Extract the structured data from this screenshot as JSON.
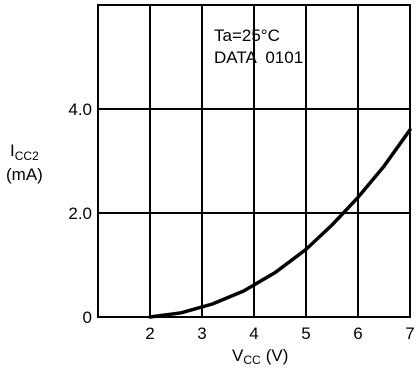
{
  "chart_data": {
    "type": "line",
    "title": "",
    "annotation": [
      "Ta=25°C",
      "DATA  0101"
    ],
    "xlabel": {
      "main": "V",
      "sub": "CC",
      "unit": "(V)"
    },
    "ylabel": {
      "main": "I",
      "sub": "CC2",
      "unit": "(mA)"
    },
    "xlim": [
      1,
      7
    ],
    "ylim": [
      0,
      6
    ],
    "x_ticks": [
      2,
      3,
      4,
      5,
      6,
      7
    ],
    "x_tick_labels": [
      "2",
      "3",
      "4",
      "5",
      "6",
      "7"
    ],
    "y_ticks": [
      0,
      2,
      4
    ],
    "y_tick_labels": [
      "0",
      "2.0",
      "4.0"
    ],
    "grid": true,
    "series": [
      {
        "x": [
          2.0,
          2.6,
          3.2,
          3.8,
          4.4,
          5.0,
          5.5,
          6.0,
          6.5,
          7.0
        ],
        "y": [
          0.0,
          0.08,
          0.25,
          0.5,
          0.85,
          1.3,
          1.77,
          2.3,
          2.9,
          3.6
        ]
      }
    ]
  }
}
